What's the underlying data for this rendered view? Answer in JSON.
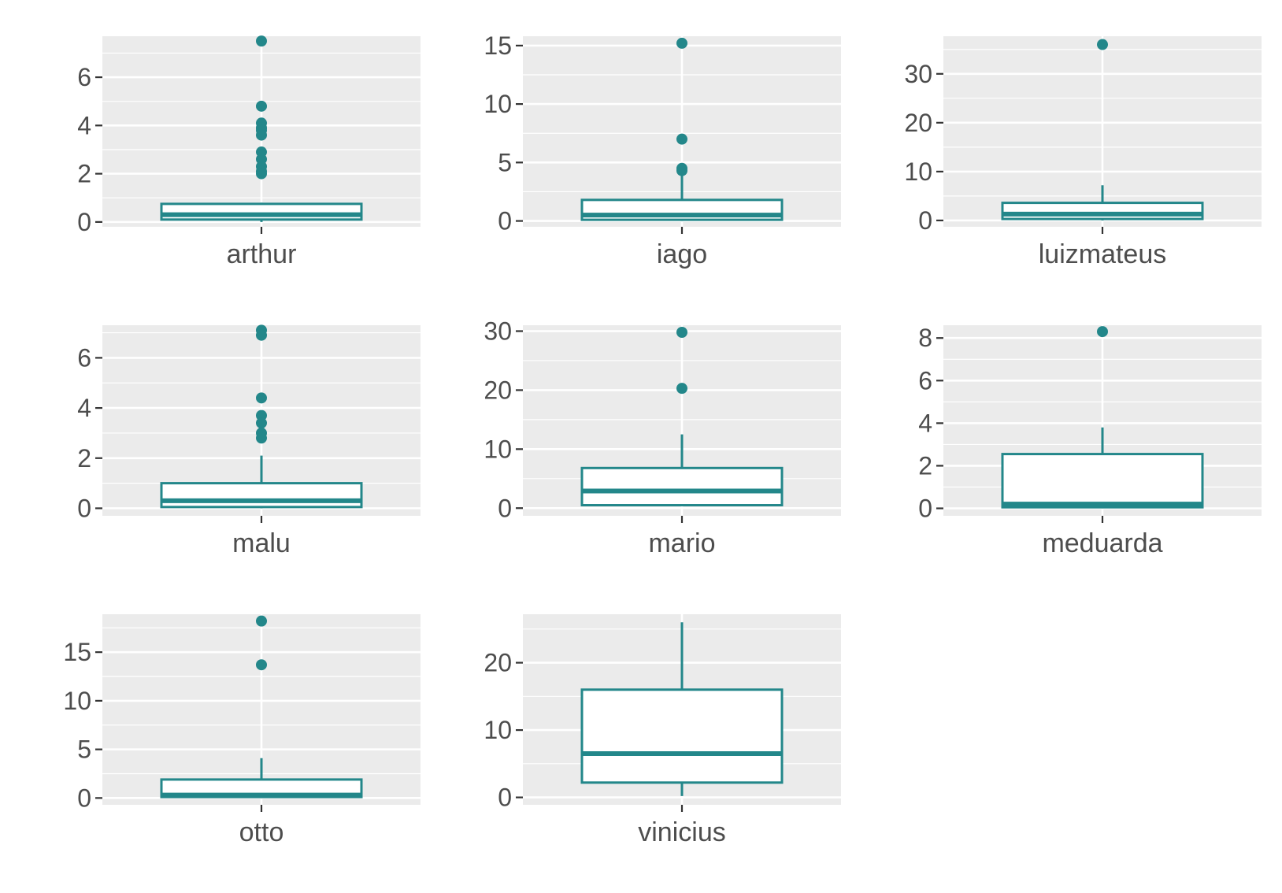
{
  "colors": {
    "accent": "#23878a",
    "panel_bg": "#ebebeb",
    "grid": "#ffffff",
    "text": "#4d4d4d",
    "tick": "#333333"
  },
  "chart_data": [
    {
      "type": "boxplot",
      "category": "arthur",
      "ylim": [
        -0.2,
        7.7
      ],
      "yticks": [
        0,
        2,
        4,
        6
      ],
      "box": {
        "lower_whisker": 0,
        "q1": 0.1,
        "median": 0.3,
        "q3": 0.75,
        "upper_whisker": 0.8
      },
      "outliers": [
        7.5,
        4.8,
        4.1,
        3.9,
        3.8,
        3.6,
        2.9,
        2.6,
        2.3,
        2.1,
        2.0
      ]
    },
    {
      "type": "boxplot",
      "category": "iago",
      "ylim": [
        -0.5,
        15.8
      ],
      "yticks": [
        0,
        5,
        10,
        15
      ],
      "box": {
        "lower_whisker": 0,
        "q1": 0.1,
        "median": 0.5,
        "q3": 1.8,
        "upper_whisker": 3.9
      },
      "outliers": [
        15.2,
        7.0,
        4.5,
        4.3
      ]
    },
    {
      "type": "boxplot",
      "category": "luizmateus",
      "ylim": [
        -1.3,
        37.7
      ],
      "yticks": [
        0,
        10,
        20,
        30
      ],
      "box": {
        "lower_whisker": 0,
        "q1": 0.3,
        "median": 1.3,
        "q3": 3.6,
        "upper_whisker": 7.2
      },
      "outliers": [
        36.0
      ]
    },
    {
      "type": "boxplot",
      "category": "malu",
      "ylim": [
        -0.3,
        7.3
      ],
      "yticks": [
        0,
        2,
        4,
        6
      ],
      "box": {
        "lower_whisker": 0,
        "q1": 0.05,
        "median": 0.3,
        "q3": 1.0,
        "upper_whisker": 2.1
      },
      "outliers": [
        7.1,
        6.9,
        4.4,
        3.7,
        3.4,
        3.0,
        2.8
      ]
    },
    {
      "type": "boxplot",
      "category": "mario",
      "ylim": [
        -1.3,
        31.0
      ],
      "yticks": [
        0,
        10,
        20,
        30
      ],
      "box": {
        "lower_whisker": 0.3,
        "q1": 0.5,
        "median": 2.9,
        "q3": 6.8,
        "upper_whisker": 12.5
      },
      "outliers": [
        29.8,
        20.3
      ]
    },
    {
      "type": "boxplot",
      "category": "meduarda",
      "ylim": [
        -0.35,
        8.6
      ],
      "yticks": [
        0,
        2,
        4,
        6,
        8
      ],
      "box": {
        "lower_whisker": 0,
        "q1": 0.05,
        "median": 0.2,
        "q3": 2.55,
        "upper_whisker": 3.8
      },
      "outliers": [
        8.3
      ]
    },
    {
      "type": "boxplot",
      "category": "otto",
      "ylim": [
        -0.7,
        18.9
      ],
      "yticks": [
        0,
        5,
        10,
        15
      ],
      "box": {
        "lower_whisker": 0,
        "q1": 0.1,
        "median": 0.3,
        "q3": 1.9,
        "upper_whisker": 4.1
      },
      "outliers": [
        18.2,
        13.7
      ]
    },
    {
      "type": "boxplot",
      "category": "vinicius",
      "ylim": [
        -1.1,
        27.2
      ],
      "yticks": [
        0,
        10,
        20
      ],
      "box": {
        "lower_whisker": 0.2,
        "q1": 2.2,
        "median": 6.5,
        "q3": 16.0,
        "upper_whisker": 26.0
      },
      "outliers": []
    }
  ]
}
